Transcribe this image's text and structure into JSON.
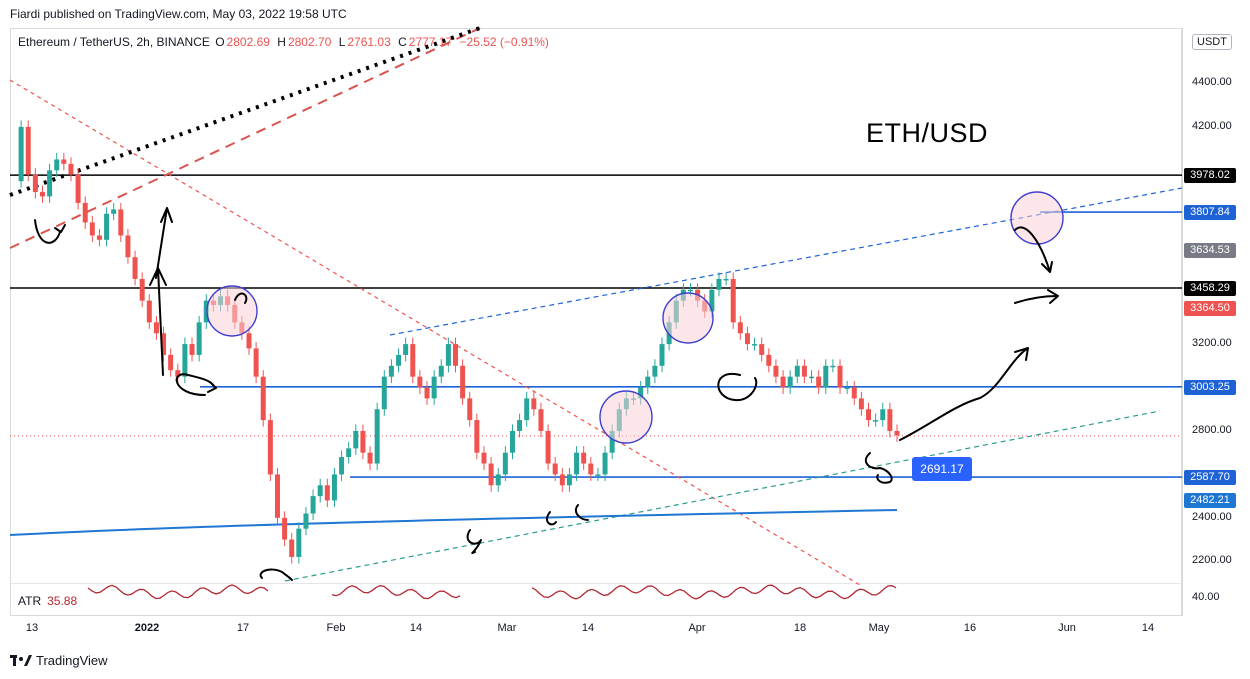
{
  "header": {
    "published": "Fiardi published on TradingView.com, May 03, 2022 19:58 UTC"
  },
  "symbol": {
    "name": "Ethereum / TetherUS, 2h, BINANCE",
    "open_label": "O",
    "open": "2802.69",
    "high_label": "H",
    "high": "2802.70",
    "low_label": "L",
    "low": "2761.03",
    "close_label": "C",
    "close": "2777.17",
    "change": "−25.52 (−0.91%)"
  },
  "annotation_text": "ETH/USD",
  "price_tag": "2691.17",
  "currency": "USDT",
  "atr": {
    "label": "ATR",
    "value": "35.88",
    "axis_tick": "40.00"
  },
  "footer": {
    "brand": "TradingView"
  },
  "colors": {
    "up": "#26a69a",
    "down": "#ef5350",
    "hline_blue": "#1e63d6",
    "black_line": "#000000",
    "ema": "#1f77d4",
    "atr_line": "#b22833"
  },
  "chart_data": {
    "type": "candlestick",
    "ylim": [
      2100,
      4600
    ],
    "y_ticks": [
      "4400.00",
      "4200.00",
      "3200.00",
      "2800.00",
      "2400.00",
      "2200.00"
    ],
    "y_tick_values": [
      4400,
      4200,
      3200,
      2800,
      2400,
      2200
    ],
    "x_ticks": [
      "13",
      "2022",
      "17",
      "Feb",
      "14",
      "Mar",
      "14",
      "Apr",
      "18",
      "May",
      "16",
      "Jun",
      "14"
    ],
    "x_tick_bold": [
      false,
      true,
      false,
      false,
      false,
      false,
      false,
      false,
      false,
      false,
      false,
      false,
      false
    ],
    "price_levels": [
      {
        "value": 3978.02,
        "label": "3978.02",
        "color": "#000000",
        "text": "#ffffff"
      },
      {
        "value": 3807.84,
        "label": "3807.84",
        "color": "#1e63d6",
        "text": "#ffffff"
      },
      {
        "value": 3634.53,
        "label": "3634.53",
        "color": "#787b86",
        "text": "#ffffff"
      },
      {
        "value": 3458.29,
        "label": "3458.29",
        "color": "#000000",
        "text": "#ffffff"
      },
      {
        "value": 3364.5,
        "label": "3364.50",
        "color": "#ef5350",
        "text": "#ffffff"
      },
      {
        "value": 3003.25,
        "label": "3003.25",
        "color": "#1e63d6",
        "text": "#ffffff"
      },
      {
        "value": 2587.7,
        "label": "2587.70",
        "color": "#1e63d6",
        "text": "#ffffff"
      },
      {
        "value": 2482.21,
        "label": "2482.21",
        "color": "#1f77d4",
        "text": "#ffffff"
      }
    ],
    "price_path": [
      3950,
      4200,
      3980,
      3900,
      3880,
      4000,
      4050,
      4030,
      3980,
      3850,
      3760,
      3700,
      3680,
      3800,
      3820,
      3700,
      3600,
      3500,
      3400,
      3300,
      3250,
      3150,
      3080,
      3050,
      3200,
      3150,
      3300,
      3400,
      3380,
      3420,
      3380,
      3300,
      3250,
      3180,
      3050,
      2850,
      2600,
      2400,
      2300,
      2220,
      2350,
      2420,
      2500,
      2550,
      2480,
      2600,
      2680,
      2720,
      2800,
      2700,
      2650,
      2900,
      3050,
      3100,
      3150,
      3200,
      3050,
      3000,
      2950,
      3050,
      3100,
      3200,
      3100,
      2950,
      2850,
      2700,
      2650,
      2550,
      2600,
      2700,
      2800,
      2850,
      2950,
      2900,
      2800,
      2650,
      2600,
      2550,
      2600,
      2700,
      2650,
      2600,
      2600,
      2700,
      2800,
      2900,
      2950,
      2950,
      3000,
      3050,
      3100,
      3200,
      3300,
      3400,
      3450,
      3450,
      3400,
      3350,
      3450,
      3500,
      3500,
      3300,
      3250,
      3200,
      3200,
      3150,
      3100,
      3050,
      3000,
      3050,
      3100,
      3050,
      3050,
      3000,
      3100,
      3100,
      3000,
      3000,
      2950,
      2900,
      2850,
      2850,
      2900,
      2800,
      2780
    ]
  }
}
